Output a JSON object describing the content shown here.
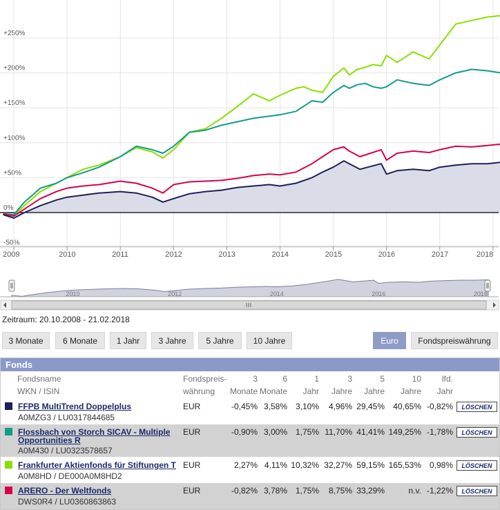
{
  "chart_data": {
    "type": "line",
    "title": "",
    "x_ticks": [
      "2009",
      "2010",
      "2011",
      "2012",
      "2013",
      "2014",
      "2015",
      "2016",
      "2017",
      "2018"
    ],
    "y_ticks": [
      "-50%",
      "0%",
      "+50%",
      "+100%",
      "+150%",
      "+200%",
      "+250%"
    ],
    "ylim": [
      -55,
      290
    ],
    "xlim": [
      2008.8,
      2018.15
    ],
    "series": [
      {
        "name": "Frankfurter Aktienfonds für Stiftungen T",
        "color": "#88e000",
        "x": [
          2008.8,
          2009.0,
          2009.2,
          2009.5,
          2009.8,
          2010.0,
          2010.3,
          2010.6,
          2011.0,
          2011.3,
          2011.6,
          2011.8,
          2012.0,
          2012.3,
          2012.6,
          2012.9,
          2013.2,
          2013.5,
          2013.8,
          2014.0,
          2014.3,
          2014.45,
          2014.6,
          2014.8,
          2015.0,
          2015.2,
          2015.3,
          2015.45,
          2015.6,
          2015.75,
          2015.9,
          2016.0,
          2016.2,
          2016.5,
          2016.8,
          2017.0,
          2017.3,
          2017.6,
          2017.9,
          2018.15
        ],
        "values": [
          -2,
          -4,
          10,
          30,
          42,
          50,
          62,
          68,
          80,
          93,
          87,
          78,
          90,
          115,
          120,
          135,
          152,
          170,
          160,
          168,
          178,
          180,
          175,
          172,
          195,
          207,
          197,
          205,
          208,
          212,
          210,
          225,
          215,
          230,
          220,
          240,
          270,
          275,
          280,
          282
        ]
      },
      {
        "name": "Flossbach von Storch SICAV - Multiple Opportunities R",
        "color": "#119c8c",
        "x": [
          2008.8,
          2009.0,
          2009.2,
          2009.5,
          2009.8,
          2010.0,
          2010.3,
          2010.6,
          2011.0,
          2011.3,
          2011.6,
          2011.8,
          2012.0,
          2012.3,
          2012.6,
          2012.9,
          2013.2,
          2013.5,
          2013.8,
          2014.0,
          2014.3,
          2014.6,
          2014.8,
          2015.0,
          2015.2,
          2015.3,
          2015.45,
          2015.6,
          2015.75,
          2015.9,
          2016.0,
          2016.2,
          2016.5,
          2016.8,
          2017.0,
          2017.3,
          2017.6,
          2017.9,
          2018.15
        ],
        "values": [
          -2,
          -3,
          15,
          35,
          42,
          50,
          57,
          65,
          80,
          95,
          90,
          85,
          95,
          115,
          118,
          125,
          130,
          135,
          138,
          140,
          145,
          160,
          158,
          172,
          182,
          178,
          183,
          185,
          180,
          178,
          180,
          190,
          185,
          182,
          190,
          200,
          205,
          203,
          200
        ]
      },
      {
        "name": "ARERO - Der Weltfonds",
        "color": "#d8004c",
        "x": [
          2008.8,
          2009.0,
          2009.2,
          2009.5,
          2009.8,
          2010.0,
          2010.3,
          2010.6,
          2011.0,
          2011.3,
          2011.6,
          2011.8,
          2012.0,
          2012.3,
          2012.6,
          2012.9,
          2013.2,
          2013.5,
          2013.8,
          2014.0,
          2014.3,
          2014.6,
          2014.8,
          2015.0,
          2015.2,
          2015.3,
          2015.5,
          2015.7,
          2015.9,
          2016.0,
          2016.2,
          2016.5,
          2016.8,
          2017.0,
          2017.3,
          2017.6,
          2017.9,
          2018.15
        ],
        "values": [
          -2,
          -5,
          5,
          20,
          30,
          35,
          38,
          40,
          45,
          42,
          35,
          28,
          40,
          44,
          45,
          46,
          49,
          53,
          55,
          54,
          58,
          70,
          80,
          90,
          94,
          88,
          80,
          85,
          90,
          75,
          85,
          88,
          86,
          90,
          95,
          94,
          96,
          98
        ]
      },
      {
        "name": "FFPB MultiTrend Doppelplus",
        "color": "#1e1e5a",
        "x": [
          2008.8,
          2009.0,
          2009.2,
          2009.5,
          2009.8,
          2010.0,
          2010.3,
          2010.6,
          2011.0,
          2011.3,
          2011.6,
          2011.8,
          2012.0,
          2012.3,
          2012.6,
          2012.9,
          2013.2,
          2013.5,
          2013.8,
          2014.0,
          2014.3,
          2014.6,
          2014.8,
          2015.0,
          2015.2,
          2015.3,
          2015.5,
          2015.7,
          2015.9,
          2016.0,
          2016.2,
          2016.5,
          2016.8,
          2017.0,
          2017.3,
          2017.6,
          2017.9,
          2018.15
        ],
        "values": [
          -3,
          -8,
          0,
          10,
          18,
          22,
          25,
          28,
          30,
          28,
          22,
          15,
          20,
          27,
          30,
          32,
          36,
          38,
          40,
          38,
          42,
          50,
          58,
          65,
          74,
          70,
          62,
          66,
          70,
          55,
          60,
          62,
          60,
          65,
          68,
          70,
          70,
          72
        ]
      }
    ]
  },
  "navigator": {
    "x_ticks": [
      "2010",
      "2012",
      "2014",
      "2016",
      "2018"
    ]
  },
  "range": {
    "label": "Zeitraum: 20.10.2008 - 21.02.2018"
  },
  "buttons": {
    "periods": [
      "3 Monate",
      "6 Monate",
      "1 Jahr",
      "3 Jahre",
      "5 Jahre",
      "10 Jahre"
    ],
    "euro": "Euro",
    "fondswaehrung": "Fondspreiswährung"
  },
  "table": {
    "title": "Fonds",
    "headers": {
      "name": [
        "Fondsname",
        "WKN / ISIN"
      ],
      "currency": [
        "Fondspreis-",
        "währung"
      ],
      "m3": [
        "3",
        "Monate"
      ],
      "m6": [
        "6",
        "Monate"
      ],
      "y1": [
        "1",
        "Jahr"
      ],
      "y3": [
        "3",
        "Jahre"
      ],
      "y5": [
        "5",
        "Jahre"
      ],
      "y10": [
        "10",
        "Jahre"
      ],
      "lfd": [
        "lfd.",
        "Jahr"
      ]
    },
    "delete_label": "LÖSCHEN",
    "rows": [
      {
        "color": "#1e1e5a",
        "name": "FFPB MultiTrend Doppelplus",
        "id": "A0MZG3 / LU0317844685",
        "currency": "EUR",
        "m3": "-0,45%",
        "m6": "3,58%",
        "y1": "3,10%",
        "y3": "4,96%",
        "y5": "29,45%",
        "y10": "40,65%",
        "lfd": "-0,82%"
      },
      {
        "color": "#119c8c",
        "name": "Flossbach von Storch SICAV - Multiple Opportunities R",
        "id": "A0M430 / LU0323578657",
        "currency": "EUR",
        "m3": "-0,90%",
        "m6": "3,00%",
        "y1": "1,75%",
        "y3": "11,70%",
        "y5": "41,41%",
        "y10": "149,25%",
        "lfd": "-1,78%"
      },
      {
        "color": "#88e000",
        "name": "Frankfurter Aktienfonds für Stiftungen T",
        "id": "A0M8HD / DE000A0M8HD2",
        "currency": "EUR",
        "m3": "2,27%",
        "m6": "4,11%",
        "y1": "10,32%",
        "y3": "32,27%",
        "y5": "59,15%",
        "y10": "165,53%",
        "lfd": "0,98%"
      },
      {
        "color": "#d8004c",
        "name": "ARERO - Der Weltfonds",
        "id": "DWS0R4 / LU0360863863",
        "currency": "EUR",
        "m3": "-0,82%",
        "m6": "3,78%",
        "y1": "1,75%",
        "y3": "8,75%",
        "y5": "33,29%",
        "y10": "n.v.",
        "lfd": "-1,22%"
      }
    ]
  }
}
